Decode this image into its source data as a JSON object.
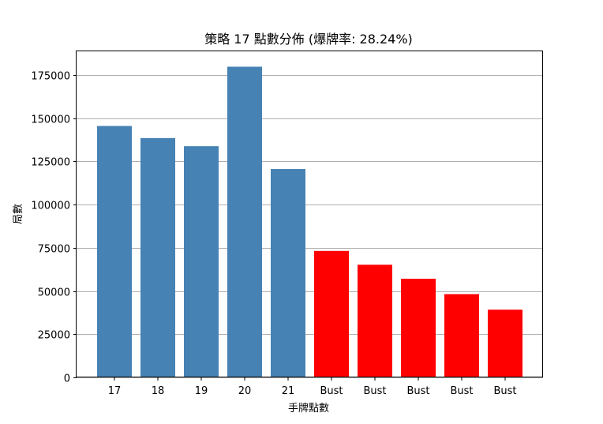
{
  "chart_data": {
    "type": "bar",
    "title": "策略 17 點數分佈 (爆牌率: 28.24%)",
    "xlabel": "手牌點數",
    "ylabel": "局數",
    "categories": [
      "17",
      "18",
      "19",
      "20",
      "21",
      "Bust",
      "Bust",
      "Bust",
      "Bust",
      "Bust"
    ],
    "values": [
      145500,
      138500,
      133800,
      179800,
      120600,
      73200,
      65200,
      57100,
      48200,
      39200
    ],
    "bar_colors": [
      "#4682b4",
      "#4682b4",
      "#4682b4",
      "#4682b4",
      "#4682b4",
      "#ff0000",
      "#ff0000",
      "#ff0000",
      "#ff0000",
      "#ff0000"
    ],
    "ylim": [
      0,
      188700
    ],
    "yticks": [
      0,
      25000,
      50000,
      75000,
      100000,
      125000,
      150000,
      175000
    ],
    "ytick_labels": [
      "0",
      "25000",
      "50000",
      "75000",
      "100000",
      "125000",
      "150000",
      "175000"
    ],
    "grid": "y-axis horizontal lines",
    "gridline_color": "#b0b0b0"
  }
}
